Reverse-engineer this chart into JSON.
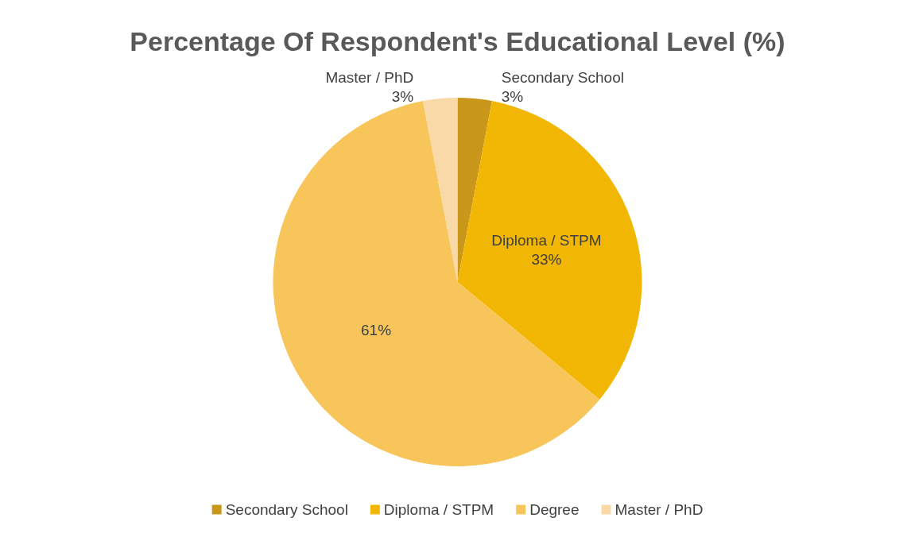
{
  "chart_data": {
    "type": "pie",
    "title": "Percentage Of Respondent's Educational Level (%)",
    "categories": [
      "Secondary School",
      "Diploma / STPM",
      "Degree",
      "Master / PhD"
    ],
    "values": [
      3,
      33,
      61,
      3
    ],
    "colors": [
      "#c9971a",
      "#f2b705",
      "#f7c55a",
      "#fad9a8"
    ],
    "value_labels": [
      "Secondary School\n3%",
      "Diploma / STPM\n33%",
      "61%",
      "Master / PhD\n3%"
    ],
    "legend": "bottom"
  }
}
